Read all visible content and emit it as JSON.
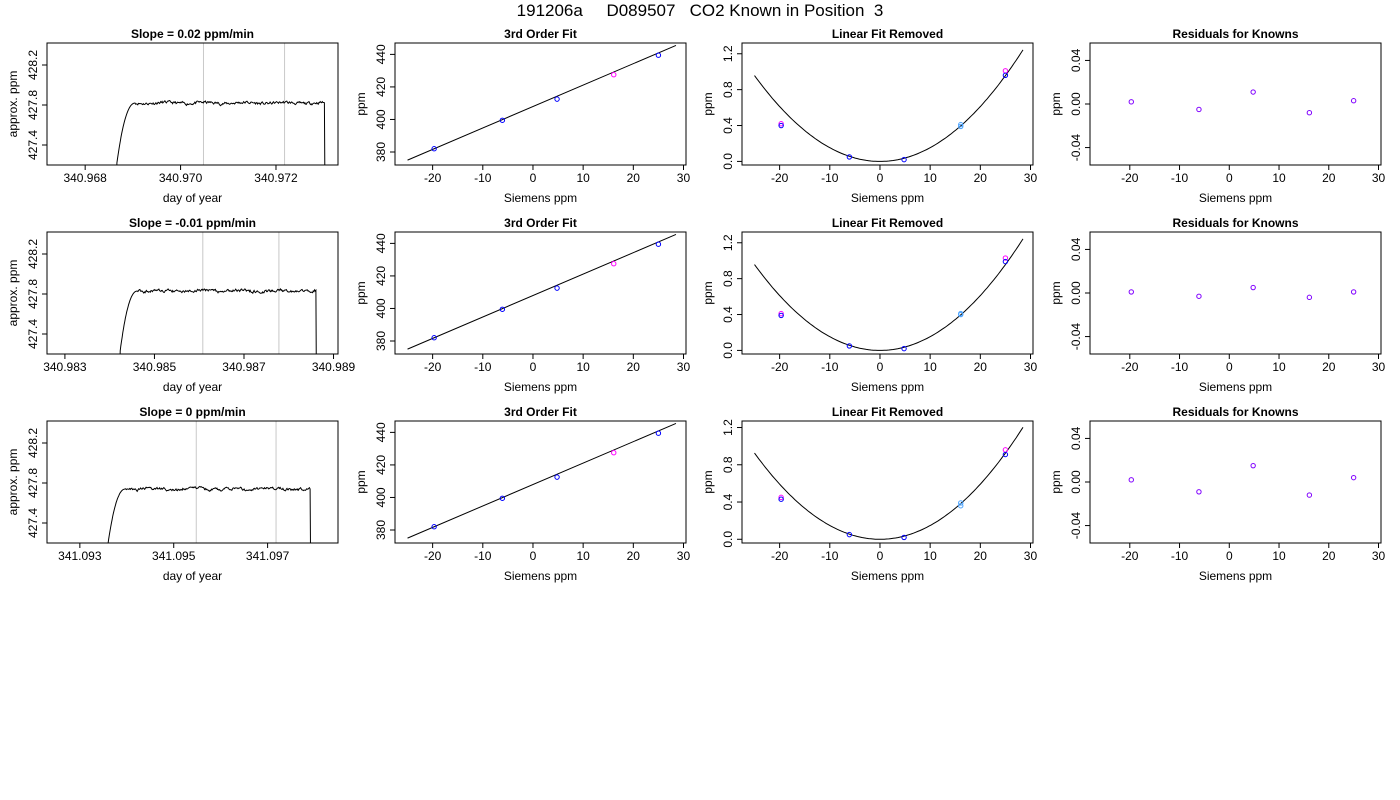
{
  "figure_title": "191206a     D089507   CO2 Known in Position  3",
  "colors": {
    "axis": "#000000",
    "trace": "#000000",
    "marker_line": "#c8c8c8",
    "fit_line": "#000000",
    "points_blue": "#0000ff",
    "points_magenta": "#ff00ff",
    "points_purple": "#8000ff",
    "points_lightblue": "#4aa3ff"
  },
  "chart_data": [
    {
      "id": "row1-timeseries",
      "type": "line",
      "title": "Slope =  0.02  ppm/min",
      "xlabel": "day of year",
      "ylabel": "approx. ppm",
      "xlim": [
        340.9672,
        340.9733
      ],
      "ylim": [
        427.2,
        428.42
      ],
      "xticks": [
        340.968,
        340.97,
        340.972
      ],
      "xtick_labels": [
        "340.968",
        "340.970",
        "340.972"
      ],
      "yticks": [
        427.4,
        427.8,
        428.2
      ],
      "ytick_labels": [
        "427.4",
        "427.8",
        "428.2"
      ],
      "vlines": [
        340.97048,
        340.97218
      ],
      "trace": {
        "x_start": 340.96865,
        "x_end": 340.97303,
        "level": 427.82,
        "rise_end": 340.96905,
        "noise": 0.015
      }
    },
    {
      "id": "row1-fit",
      "type": "scatter",
      "title": "3rd Order Fit",
      "xlabel": "Siemens ppm",
      "ylabel": "ppm",
      "xlim": [
        -27.5,
        30.5
      ],
      "ylim": [
        372,
        447
      ],
      "xticks": [
        -20,
        -10,
        0,
        10,
        20,
        30
      ],
      "yticks": [
        380,
        400,
        420,
        440
      ],
      "line": {
        "x": [
          -25,
          28.5
        ],
        "y": [
          375,
          445.5
        ]
      },
      "points": [
        {
          "x": -19.7,
          "y": 382,
          "series": "blue"
        },
        {
          "x": -6.1,
          "y": 399.5,
          "series": "blue"
        },
        {
          "x": 4.8,
          "y": 412.5,
          "series": "blue"
        },
        {
          "x": 16.1,
          "y": 427.5,
          "series": "magenta"
        },
        {
          "x": 25,
          "y": 439.5,
          "series": "blue"
        }
      ]
    },
    {
      "id": "row1-linear-removed",
      "type": "scatter",
      "title": "Linear Fit Removed",
      "xlabel": "Siemens ppm",
      "ylabel": "ppm",
      "xlim": [
        -27.5,
        30.5
      ],
      "ylim": [
        -0.04,
        1.32
      ],
      "xticks": [
        -20,
        -10,
        0,
        10,
        20,
        30
      ],
      "yticks": [
        0.0,
        0.4,
        0.8,
        1.2
      ],
      "ytick_labels": [
        "0.0",
        "0.4",
        "0.8",
        "1.2"
      ],
      "curve": {
        "coeff": 0.00153,
        "x_from": -25,
        "x_to": 28.5
      },
      "points": [
        {
          "x": -19.7,
          "y": 0.42,
          "series": "magenta"
        },
        {
          "x": -19.7,
          "y": 0.4,
          "series": "blue"
        },
        {
          "x": -6.1,
          "y": 0.05,
          "series": "blue"
        },
        {
          "x": 4.8,
          "y": 0.02,
          "series": "blue"
        },
        {
          "x": 16.1,
          "y": 0.41,
          "series": "lightblue"
        },
        {
          "x": 16.1,
          "y": 0.39,
          "series": "lightblue"
        },
        {
          "x": 25,
          "y": 1.01,
          "series": "magenta"
        },
        {
          "x": 25,
          "y": 0.96,
          "series": "blue"
        }
      ]
    },
    {
      "id": "row1-residuals",
      "type": "scatter",
      "title": "Residuals for Knowns",
      "xlabel": "Siemens ppm",
      "ylabel": "ppm",
      "xlim": [
        -28,
        30.5
      ],
      "ylim": [
        -0.056,
        0.056
      ],
      "xticks": [
        -20,
        -10,
        0,
        10,
        20,
        30
      ],
      "yticks": [
        -0.04,
        0.0,
        0.04
      ],
      "ytick_labels": [
        "-0.04",
        "0.00",
        "0.04"
      ],
      "points": [
        {
          "x": -19.7,
          "y": 0.002,
          "series": "purple"
        },
        {
          "x": -6.1,
          "y": -0.005,
          "series": "purple"
        },
        {
          "x": 4.8,
          "y": 0.011,
          "series": "purple"
        },
        {
          "x": 16.1,
          "y": -0.008,
          "series": "purple"
        },
        {
          "x": 25,
          "y": 0.003,
          "series": "purple"
        }
      ]
    },
    {
      "id": "row2-timeseries",
      "type": "line",
      "title": "Slope =  -0.01  ppm/min",
      "xlabel": "day of year",
      "ylabel": "approx. ppm",
      "xlim": [
        340.9826,
        340.9891
      ],
      "ylim": [
        427.2,
        428.42
      ],
      "xticks": [
        340.983,
        340.985,
        340.987,
        340.989
      ],
      "xtick_labels": [
        "340.983",
        "340.985",
        "340.987",
        "340.989"
      ],
      "yticks": [
        427.4,
        427.8,
        428.2
      ],
      "ytick_labels": [
        "427.4",
        "427.8",
        "428.2"
      ],
      "vlines": [
        340.98608,
        340.98778
      ],
      "trace": {
        "x_start": 340.98422,
        "x_end": 340.98862,
        "level": 427.83,
        "rise_end": 340.98462,
        "noise": 0.015
      }
    },
    {
      "id": "row2-fit",
      "type": "scatter",
      "title": "3rd Order Fit",
      "xlabel": "Siemens ppm",
      "ylabel": "ppm",
      "xlim": [
        -27.5,
        30.5
      ],
      "ylim": [
        372,
        447
      ],
      "xticks": [
        -20,
        -10,
        0,
        10,
        20,
        30
      ],
      "yticks": [
        380,
        400,
        420,
        440
      ],
      "line": {
        "x": [
          -25,
          28.5
        ],
        "y": [
          375,
          445.5
        ]
      },
      "points": [
        {
          "x": -19.7,
          "y": 382,
          "series": "blue"
        },
        {
          "x": -6.1,
          "y": 399.5,
          "series": "blue"
        },
        {
          "x": 4.8,
          "y": 412.5,
          "series": "blue"
        },
        {
          "x": 16.1,
          "y": 427.5,
          "series": "magenta"
        },
        {
          "x": 25,
          "y": 439.5,
          "series": "blue"
        }
      ]
    },
    {
      "id": "row2-linear-removed",
      "type": "scatter",
      "title": "Linear Fit Removed",
      "xlabel": "Siemens ppm",
      "ylabel": "ppm",
      "xlim": [
        -27.5,
        30.5
      ],
      "ylim": [
        -0.04,
        1.32
      ],
      "xticks": [
        -20,
        -10,
        0,
        10,
        20,
        30
      ],
      "yticks": [
        0.0,
        0.4,
        0.8,
        1.2
      ],
      "ytick_labels": [
        "0.0",
        "0.4",
        "0.8",
        "1.2"
      ],
      "curve": {
        "coeff": 0.00153,
        "x_from": -25,
        "x_to": 28.5
      },
      "points": [
        {
          "x": -19.7,
          "y": 0.41,
          "series": "magenta"
        },
        {
          "x": -19.7,
          "y": 0.39,
          "series": "blue"
        },
        {
          "x": -6.1,
          "y": 0.05,
          "series": "blue"
        },
        {
          "x": 4.8,
          "y": 0.02,
          "series": "blue"
        },
        {
          "x": 16.1,
          "y": 0.41,
          "series": "lightblue"
        },
        {
          "x": 16.1,
          "y": 0.4,
          "series": "lightblue"
        },
        {
          "x": 25,
          "y": 1.03,
          "series": "magenta"
        },
        {
          "x": 25,
          "y": 0.99,
          "series": "blue"
        }
      ]
    },
    {
      "id": "row2-residuals",
      "type": "scatter",
      "title": "Residuals for Knowns",
      "xlabel": "Siemens ppm",
      "ylabel": "ppm",
      "xlim": [
        -28,
        30.5
      ],
      "ylim": [
        -0.056,
        0.056
      ],
      "xticks": [
        -20,
        -10,
        0,
        10,
        20,
        30
      ],
      "yticks": [
        -0.04,
        0.0,
        0.04
      ],
      "ytick_labels": [
        "-0.04",
        "0.00",
        "0.04"
      ],
      "points": [
        {
          "x": -19.7,
          "y": 0.001,
          "series": "purple"
        },
        {
          "x": -6.1,
          "y": -0.003,
          "series": "purple"
        },
        {
          "x": 4.8,
          "y": 0.005,
          "series": "purple"
        },
        {
          "x": 16.1,
          "y": -0.004,
          "series": "purple"
        },
        {
          "x": 25,
          "y": 0.001,
          "series": "purple"
        }
      ]
    },
    {
      "id": "row3-timeseries",
      "type": "line",
      "title": "Slope =  0  ppm/min",
      "xlabel": "day of year",
      "ylabel": "approx. ppm",
      "xlim": [
        341.0923,
        341.0985
      ],
      "ylim": [
        427.2,
        428.42
      ],
      "xticks": [
        341.093,
        341.095,
        341.097
      ],
      "xtick_labels": [
        "341.093",
        "341.095",
        "341.097"
      ],
      "yticks": [
        427.4,
        427.8,
        428.2
      ],
      "ytick_labels": [
        "427.4",
        "427.8",
        "428.2"
      ],
      "vlines": [
        341.09548,
        341.09718
      ],
      "trace": {
        "x_start": 341.09357,
        "x_end": 341.09792,
        "level": 427.74,
        "rise_end": 341.09397,
        "noise": 0.015
      }
    },
    {
      "id": "row3-fit",
      "type": "scatter",
      "title": "3rd Order Fit",
      "xlabel": "Siemens ppm",
      "ylabel": "ppm",
      "xlim": [
        -27.5,
        30.5
      ],
      "ylim": [
        372,
        447
      ],
      "xticks": [
        -20,
        -10,
        0,
        10,
        20,
        30
      ],
      "yticks": [
        380,
        400,
        420,
        440
      ],
      "line": {
        "x": [
          -25,
          28.5
        ],
        "y": [
          375,
          445.5
        ]
      },
      "points": [
        {
          "x": -19.7,
          "y": 382,
          "series": "blue"
        },
        {
          "x": -6.1,
          "y": 399.5,
          "series": "blue"
        },
        {
          "x": 4.8,
          "y": 412.5,
          "series": "blue"
        },
        {
          "x": 16.1,
          "y": 427.5,
          "series": "magenta"
        },
        {
          "x": 25,
          "y": 439.5,
          "series": "blue"
        }
      ]
    },
    {
      "id": "row3-linear-removed",
      "type": "scatter",
      "title": "Linear Fit Removed",
      "xlabel": "Siemens ppm",
      "ylabel": "ppm",
      "xlim": [
        -27.5,
        30.5
      ],
      "ylim": [
        -0.04,
        1.27
      ],
      "xticks": [
        -20,
        -10,
        0,
        10,
        20,
        30
      ],
      "yticks": [
        0.0,
        0.4,
        0.8,
        1.2
      ],
      "ytick_labels": [
        "0.0",
        "0.4",
        "0.8",
        "1.2"
      ],
      "curve": {
        "coeff": 0.00148,
        "x_from": -25,
        "x_to": 28.5
      },
      "points": [
        {
          "x": -19.7,
          "y": 0.45,
          "series": "magenta"
        },
        {
          "x": -19.7,
          "y": 0.43,
          "series": "blue"
        },
        {
          "x": -6.1,
          "y": 0.05,
          "series": "blue"
        },
        {
          "x": 4.8,
          "y": 0.02,
          "series": "blue"
        },
        {
          "x": 16.1,
          "y": 0.39,
          "series": "lightblue"
        },
        {
          "x": 16.1,
          "y": 0.36,
          "series": "lightblue"
        },
        {
          "x": 25,
          "y": 0.96,
          "series": "magenta"
        },
        {
          "x": 25,
          "y": 0.91,
          "series": "blue"
        }
      ]
    },
    {
      "id": "row3-residuals",
      "type": "scatter",
      "title": "Residuals for Knowns",
      "xlabel": "Siemens ppm",
      "ylabel": "ppm",
      "xlim": [
        -28,
        30.5
      ],
      "ylim": [
        -0.056,
        0.056
      ],
      "xticks": [
        -20,
        -10,
        0,
        10,
        20,
        30
      ],
      "yticks": [
        -0.04,
        0.0,
        0.04
      ],
      "ytick_labels": [
        "-0.04",
        "0.00",
        "0.04"
      ],
      "points": [
        {
          "x": -19.7,
          "y": 0.002,
          "series": "purple"
        },
        {
          "x": -6.1,
          "y": -0.009,
          "series": "purple"
        },
        {
          "x": 4.8,
          "y": 0.015,
          "series": "purple"
        },
        {
          "x": 16.1,
          "y": -0.012,
          "series": "purple"
        },
        {
          "x": 25,
          "y": 0.004,
          "series": "purple"
        }
      ]
    }
  ]
}
